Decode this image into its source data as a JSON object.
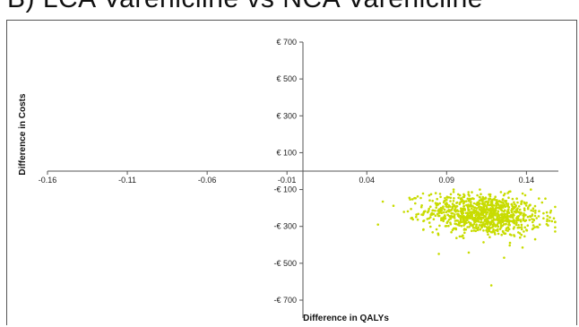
{
  "chart_data": {
    "type": "scatter",
    "title": "B) LCA Varenicline vs NCA Varenicline",
    "xlabel": "Difference in QALYs",
    "ylabel": "Difference in Costs",
    "xlim": [
      -0.16,
      0.16
    ],
    "ylim": [
      -700,
      700
    ],
    "x_ticks": [
      "-0.16",
      "-0.11",
      "-0.06",
      "-0.01",
      "0.04",
      "0.09",
      "0.14"
    ],
    "x_tick_values": [
      -0.16,
      -0.11,
      -0.06,
      -0.01,
      0.04,
      0.09,
      0.14
    ],
    "y_ticks": [
      "€ 700",
      "€ 500",
      "€ 300",
      "€ 100",
      "-€ 100",
      "-€ 300",
      "-€ 500",
      "-€ 700"
    ],
    "y_tick_values": [
      700,
      500,
      300,
      100,
      -100,
      -300,
      -500,
      -700
    ],
    "grid": false,
    "legend": "none",
    "marker_color": "#c8dc00",
    "cloud": {
      "n": 1000,
      "x_mean": 0.113,
      "x_sd": 0.018,
      "y_mean": -235,
      "y_sd": 55,
      "outliers": [
        {
          "x": 0.118,
          "y": -620
        },
        {
          "x": 0.126,
          "y": -470
        },
        {
          "x": 0.047,
          "y": -290
        },
        {
          "x": 0.155,
          "y": -225
        }
      ]
    }
  }
}
